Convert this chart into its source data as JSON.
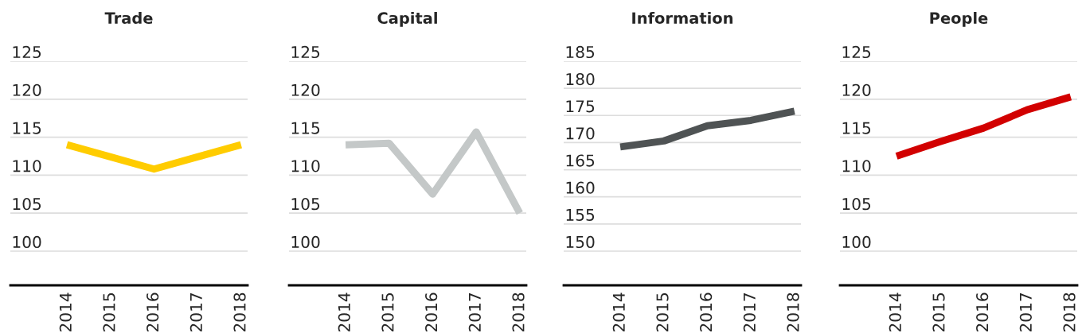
{
  "chart_data": [
    {
      "type": "line",
      "title": "Trade",
      "categories": [
        "2014",
        "2015",
        "2016",
        "2017",
        "2018"
      ],
      "series": [
        {
          "color": "#ffcc00",
          "values": [
            114.0,
            112.4,
            110.8,
            112.4,
            114.0
          ]
        }
      ],
      "ylim": [
        95.5,
        125
      ],
      "yticks": [
        100,
        105,
        110,
        115,
        120,
        125
      ],
      "grid": "y"
    },
    {
      "type": "line",
      "title": "Capital",
      "categories": [
        "2014",
        "2015",
        "2016",
        "2017",
        "2018"
      ],
      "series": [
        {
          "color": "#c4c8c8",
          "values": [
            114.0,
            114.2,
            107.5,
            115.7,
            105.0
          ]
        }
      ],
      "ylim": [
        95.5,
        125
      ],
      "yticks": [
        100,
        105,
        110,
        115,
        120,
        125
      ],
      "grid": "y"
    },
    {
      "type": "line",
      "title": "Information",
      "categories": [
        "2014",
        "2015",
        "2016",
        "2017",
        "2018"
      ],
      "series": [
        {
          "color": "#4f5354",
          "values": [
            169.2,
            170.3,
            173.1,
            174.1,
            175.8
          ]
        }
      ],
      "ylim": [
        143.7,
        185
      ],
      "yticks": [
        150,
        155,
        160,
        165,
        170,
        175,
        180,
        185
      ],
      "grid": "y"
    },
    {
      "type": "line",
      "title": "People",
      "categories": [
        "2014",
        "2015",
        "2016",
        "2017",
        "2018"
      ],
      "series": [
        {
          "color": "#d20000",
          "values": [
            112.5,
            114.4,
            116.2,
            118.6,
            120.3
          ]
        }
      ],
      "ylim": [
        95.5,
        125
      ],
      "yticks": [
        100,
        105,
        110,
        115,
        120,
        125
      ],
      "grid": "y"
    }
  ]
}
